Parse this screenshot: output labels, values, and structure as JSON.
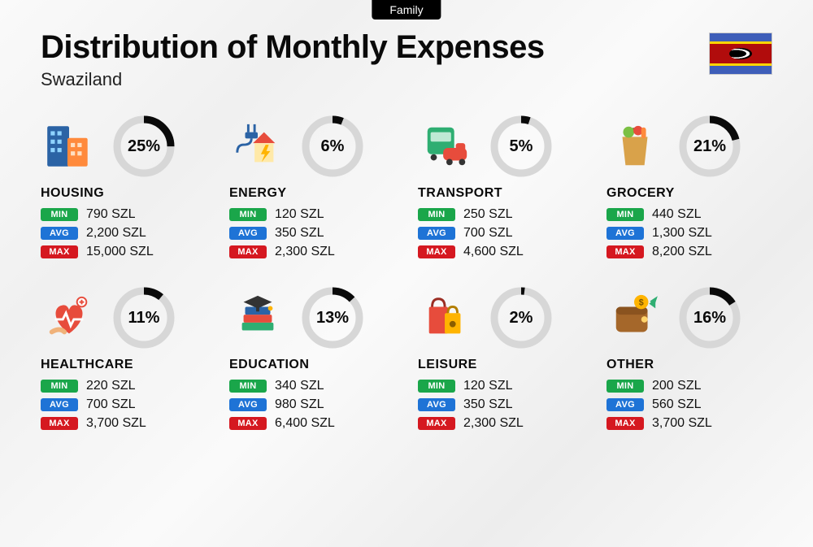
{
  "tag": "Family",
  "title": "Distribution of Monthly Expenses",
  "subtitle": "Swaziland",
  "currency": "SZL",
  "labels": {
    "min": "MIN",
    "avg": "AVG",
    "max": "MAX"
  },
  "colors": {
    "min_badge": "#1aa64a",
    "avg_badge": "#1e73d6",
    "max_badge": "#d51820",
    "donut_track": "#d7d7d7",
    "donut_fill": "#0a0a0a",
    "text": "#0a0a0a"
  },
  "donut": {
    "radius": 33,
    "stroke": 9
  },
  "categories": [
    {
      "key": "housing",
      "name": "HOUSING",
      "pct": 25,
      "min": "790",
      "avg": "2,200",
      "max": "15,000"
    },
    {
      "key": "energy",
      "name": "ENERGY",
      "pct": 6,
      "min": "120",
      "avg": "350",
      "max": "2,300"
    },
    {
      "key": "transport",
      "name": "TRANSPORT",
      "pct": 5,
      "min": "250",
      "avg": "700",
      "max": "4,600"
    },
    {
      "key": "grocery",
      "name": "GROCERY",
      "pct": 21,
      "min": "440",
      "avg": "1,300",
      "max": "8,200"
    },
    {
      "key": "healthcare",
      "name": "HEALTHCARE",
      "pct": 11,
      "min": "220",
      "avg": "700",
      "max": "3,700"
    },
    {
      "key": "education",
      "name": "EDUCATION",
      "pct": 13,
      "min": "340",
      "avg": "980",
      "max": "6,400"
    },
    {
      "key": "leisure",
      "name": "LEISURE",
      "pct": 2,
      "min": "120",
      "avg": "350",
      "max": "2,300"
    },
    {
      "key": "other",
      "name": "OTHER",
      "pct": 16,
      "min": "200",
      "avg": "560",
      "max": "3,700"
    }
  ]
}
